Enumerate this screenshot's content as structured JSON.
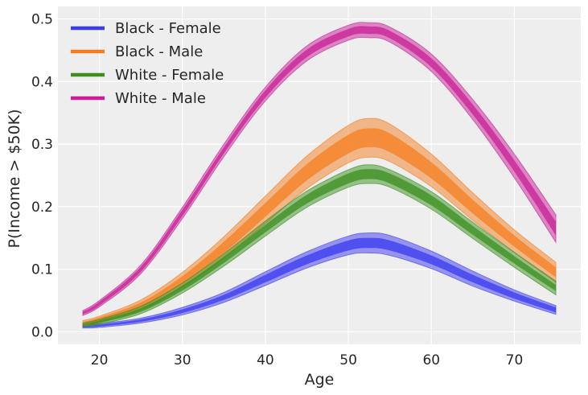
{
  "chart_data": {
    "type": "area",
    "title": "",
    "xlabel": "Age",
    "ylabel": "P(Income > $50K)",
    "xlim": [
      15,
      78
    ],
    "ylim": [
      -0.02,
      0.52
    ],
    "xticks": [
      20,
      30,
      40,
      50,
      60,
      70
    ],
    "yticks": [
      0.0,
      0.1,
      0.2,
      0.3,
      0.4,
      0.5
    ],
    "grid": true,
    "legend_position": "top-left",
    "x": [
      18,
      20,
      25,
      30,
      35,
      40,
      45,
      50,
      52.5,
      55,
      60,
      65,
      70,
      75
    ],
    "series": [
      {
        "name": "Black - Female",
        "color": "#3a3af0",
        "mean": [
          0.008,
          0.01,
          0.018,
          0.033,
          0.055,
          0.085,
          0.115,
          0.138,
          0.142,
          0.138,
          0.115,
          0.085,
          0.058,
          0.035
        ],
        "inner_halfwidth": [
          0.001,
          0.0015,
          0.002,
          0.003,
          0.004,
          0.006,
          0.007,
          0.008,
          0.008,
          0.008,
          0.007,
          0.006,
          0.005,
          0.004
        ],
        "outer_halfwidth": [
          0.002,
          0.003,
          0.004,
          0.006,
          0.008,
          0.011,
          0.013,
          0.015,
          0.016,
          0.016,
          0.014,
          0.012,
          0.009,
          0.007
        ]
      },
      {
        "name": "Black - Male",
        "color": "#f47d1f",
        "mean": [
          0.014,
          0.02,
          0.043,
          0.083,
          0.135,
          0.195,
          0.255,
          0.3,
          0.31,
          0.302,
          0.258,
          0.2,
          0.145,
          0.095
        ],
        "inner_halfwidth": [
          0.002,
          0.003,
          0.004,
          0.006,
          0.009,
          0.011,
          0.013,
          0.015,
          0.015,
          0.015,
          0.013,
          0.011,
          0.009,
          0.008
        ],
        "outer_halfwidth": [
          0.004,
          0.005,
          0.008,
          0.012,
          0.017,
          0.022,
          0.026,
          0.03,
          0.031,
          0.03,
          0.026,
          0.022,
          0.018,
          0.016
        ]
      },
      {
        "name": "White - Female",
        "color": "#3a8f1e",
        "mean": [
          0.011,
          0.016,
          0.035,
          0.07,
          0.115,
          0.165,
          0.212,
          0.245,
          0.252,
          0.245,
          0.21,
          0.162,
          0.115,
          0.07
        ],
        "inner_halfwidth": [
          0.001,
          0.002,
          0.003,
          0.004,
          0.005,
          0.006,
          0.007,
          0.008,
          0.008,
          0.008,
          0.008,
          0.007,
          0.006,
          0.005
        ],
        "outer_halfwidth": [
          0.003,
          0.004,
          0.006,
          0.008,
          0.01,
          0.012,
          0.013,
          0.014,
          0.015,
          0.014,
          0.014,
          0.013,
          0.012,
          0.011
        ]
      },
      {
        "name": "White - Male",
        "color": "#c81e96",
        "mean": [
          0.03,
          0.045,
          0.1,
          0.19,
          0.29,
          0.38,
          0.445,
          0.478,
          0.482,
          0.475,
          0.43,
          0.355,
          0.265,
          0.165
        ],
        "inner_halfwidth": [
          0.002,
          0.003,
          0.004,
          0.005,
          0.005,
          0.006,
          0.006,
          0.006,
          0.006,
          0.006,
          0.007,
          0.008,
          0.009,
          0.011
        ],
        "outer_halfwidth": [
          0.004,
          0.005,
          0.007,
          0.009,
          0.01,
          0.011,
          0.012,
          0.012,
          0.012,
          0.012,
          0.014,
          0.016,
          0.019,
          0.022
        ]
      }
    ]
  }
}
